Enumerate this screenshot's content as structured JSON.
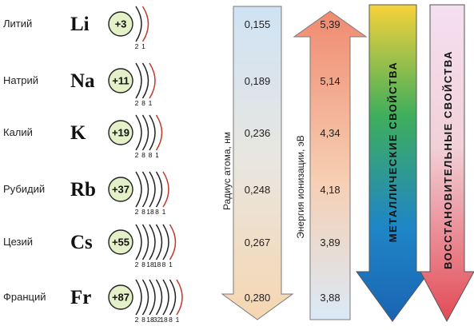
{
  "elements": [
    {
      "name": "Литий",
      "symbol": "Li",
      "charge": "+3",
      "shells": [
        "2",
        "1"
      ]
    },
    {
      "name": "Натрий",
      "symbol": "Na",
      "charge": "+11",
      "shells": [
        "2",
        "8",
        "1"
      ]
    },
    {
      "name": "Калий",
      "symbol": "K",
      "charge": "+19",
      "shells": [
        "2",
        "8",
        "8",
        "1"
      ]
    },
    {
      "name": "Рубидий",
      "symbol": "Rb",
      "charge": "+37",
      "shells": [
        "2",
        "8",
        "18",
        "8",
        "1"
      ]
    },
    {
      "name": "Цезий",
      "symbol": "Cs",
      "charge": "+55",
      "shells": [
        "2",
        "8",
        "18",
        "18",
        "8",
        "1"
      ]
    },
    {
      "name": "Франций",
      "symbol": "Fr",
      "charge": "+87",
      "shells": [
        "2",
        "8",
        "18",
        "32",
        "18",
        "8",
        "1"
      ]
    }
  ],
  "radius_column": {
    "label": "Радиус атома, нм",
    "values": [
      "0,155",
      "0,189",
      "0,236",
      "0,248",
      "0,267",
      "0,280"
    ]
  },
  "ionization_column": {
    "label": "Энергия ионизации, эВ",
    "values": [
      "5,39",
      "5,14",
      "4,34",
      "4,18",
      "3,89",
      "3,88"
    ]
  },
  "metallic_arrow": {
    "label": "металлические свойства"
  },
  "reducing_arrow": {
    "label": "восстановительные свойства"
  },
  "colors": {
    "nucleus_fill": "#e4f0c8",
    "outer_shell": "#c0392b",
    "radius_arrow": "#f6e3c4",
    "ionization_arrow": "#f2a07a",
    "metallic_arrow": "#1d77c4",
    "reducing_arrow": "#e0505a"
  }
}
